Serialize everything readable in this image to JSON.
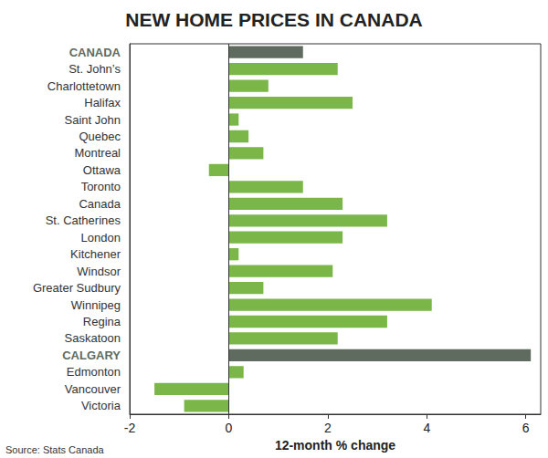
{
  "chart_data": {
    "type": "bar",
    "title": "NEW HOME PRICES IN CANADA",
    "orientation": "horizontal",
    "categories": [
      "CANADA",
      "St. John’s",
      "Charlottetown",
      "Halifax",
      "Saint John",
      "Quebec",
      "Montreal",
      "Ottawa",
      "Toronto",
      "Canada",
      "St. Catherines",
      "London",
      "Kitchener",
      "Windsor",
      "Greater Sudbury",
      "Winnipeg",
      "Regina",
      "Saskatoon",
      "CALGARY",
      "Edmonton",
      "Vancouver",
      "Victoria"
    ],
    "values": [
      1.5,
      2.2,
      0.8,
      2.5,
      0.2,
      0.4,
      0.7,
      -0.4,
      1.5,
      2.3,
      3.2,
      2.3,
      0.2,
      2.1,
      0.7,
      4.1,
      3.2,
      2.2,
      6.1,
      0.3,
      -1.5,
      -0.9
    ],
    "colors": [
      "#5e6b5e",
      "#7ab648",
      "#7ab648",
      "#7ab648",
      "#7ab648",
      "#7ab648",
      "#7ab648",
      "#7ab648",
      "#7ab648",
      "#7ab648",
      "#7ab648",
      "#7ab648",
      "#7ab648",
      "#7ab648",
      "#7ab648",
      "#7ab648",
      "#7ab648",
      "#7ab648",
      "#5e6b5e",
      "#7ab648",
      "#7ab648",
      "#7ab648"
    ],
    "xlabel": "12-month % change",
    "source": "Source: Stats Canada",
    "xlim": [
      -2,
      6.3
    ],
    "xticks": [
      -2,
      0,
      2,
      4,
      6
    ],
    "grid": false
  }
}
